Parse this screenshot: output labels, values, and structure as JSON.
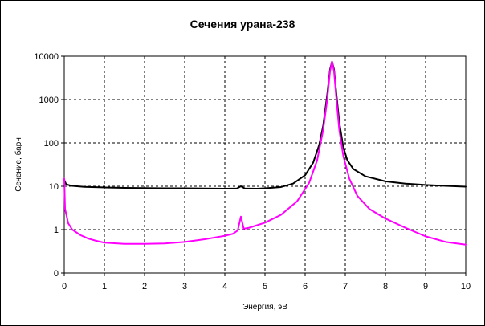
{
  "chart_data": {
    "type": "line",
    "title": "Сечения урана-238",
    "xlabel": "Энергия, эВ",
    "ylabel": "Сечение, барн",
    "xlim": [
      0,
      10
    ],
    "ylim": [
      0.1,
      10000
    ],
    "y_scale": "log",
    "grid": true,
    "x_ticks": [
      "0",
      "1",
      "2",
      "3",
      "4",
      "5",
      "6",
      "7",
      "8",
      "9",
      "10"
    ],
    "y_ticks": [
      {
        "value": 0.1,
        "label": "0"
      },
      {
        "value": 1,
        "label": "1"
      },
      {
        "value": 10,
        "label": "10"
      },
      {
        "value": 100,
        "label": "100"
      },
      {
        "value": 1000,
        "label": "1000"
      },
      {
        "value": 10000,
        "label": "10000"
      }
    ],
    "series": [
      {
        "color": "#000000",
        "points": [
          [
            0.0,
            14
          ],
          [
            0.05,
            11
          ],
          [
            0.2,
            10.2
          ],
          [
            0.5,
            9.7
          ],
          [
            1.0,
            9.4
          ],
          [
            1.5,
            9.2
          ],
          [
            2.0,
            9.1
          ],
          [
            2.5,
            9.0
          ],
          [
            3.0,
            9.0
          ],
          [
            3.5,
            8.9
          ],
          [
            4.0,
            8.8
          ],
          [
            4.3,
            8.9
          ],
          [
            4.4,
            10.0
          ],
          [
            4.5,
            8.9
          ],
          [
            4.8,
            8.8
          ],
          [
            5.0,
            9.0
          ],
          [
            5.4,
            9.6
          ],
          [
            5.7,
            11.5
          ],
          [
            6.0,
            18
          ],
          [
            6.2,
            35
          ],
          [
            6.35,
            90
          ],
          [
            6.45,
            250
          ],
          [
            6.55,
            1300
          ],
          [
            6.62,
            5000
          ],
          [
            6.67,
            7500
          ],
          [
            6.72,
            5000
          ],
          [
            6.78,
            1300
          ],
          [
            6.85,
            300
          ],
          [
            6.95,
            80
          ],
          [
            7.05,
            40
          ],
          [
            7.2,
            25
          ],
          [
            7.5,
            17
          ],
          [
            8.0,
            13
          ],
          [
            8.5,
            11.5
          ],
          [
            9.0,
            10.7
          ],
          [
            9.5,
            10.2
          ],
          [
            10.0,
            9.8
          ]
        ]
      },
      {
        "color": "#ff00ff",
        "points": [
          [
            0.0,
            15
          ],
          [
            0.02,
            3.0
          ],
          [
            0.1,
            1.4
          ],
          [
            0.2,
            1.0
          ],
          [
            0.4,
            0.75
          ],
          [
            0.6,
            0.62
          ],
          [
            0.8,
            0.55
          ],
          [
            1.0,
            0.5
          ],
          [
            1.5,
            0.47
          ],
          [
            2.0,
            0.47
          ],
          [
            2.5,
            0.48
          ],
          [
            3.0,
            0.52
          ],
          [
            3.5,
            0.6
          ],
          [
            4.0,
            0.72
          ],
          [
            4.2,
            0.8
          ],
          [
            4.32,
            0.95
          ],
          [
            4.4,
            2.0
          ],
          [
            4.47,
            1.05
          ],
          [
            4.6,
            1.1
          ],
          [
            5.0,
            1.45
          ],
          [
            5.4,
            2.2
          ],
          [
            5.8,
            4.5
          ],
          [
            6.1,
            12
          ],
          [
            6.3,
            40
          ],
          [
            6.45,
            200
          ],
          [
            6.55,
            1000
          ],
          [
            6.62,
            4500
          ],
          [
            6.67,
            7500
          ],
          [
            6.72,
            4500
          ],
          [
            6.78,
            1000
          ],
          [
            6.85,
            200
          ],
          [
            6.95,
            50
          ],
          [
            7.1,
            15
          ],
          [
            7.3,
            6
          ],
          [
            7.6,
            3
          ],
          [
            8.0,
            1.8
          ],
          [
            8.5,
            1.1
          ],
          [
            9.0,
            0.7
          ],
          [
            9.5,
            0.52
          ],
          [
            10.0,
            0.45
          ]
        ]
      }
    ]
  }
}
